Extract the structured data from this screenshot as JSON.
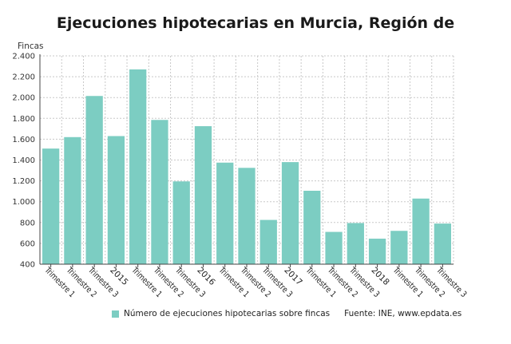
{
  "colors": {
    "bar": "#7ccdc2",
    "grid": "#c8c8c8",
    "axis": "#444444"
  },
  "legend": {
    "series_label": "Número de ejecuciones hipotecarias sobre fincas"
  },
  "source": "Fuente: INE, www.epdata.es",
  "chart_data": {
    "type": "bar",
    "title": "Ejecuciones hipotecarias en Murcia, Región de",
    "ylabel": "Fincas",
    "xlabel": "",
    "ylim": [
      400,
      2400
    ],
    "yticks": [
      400,
      600,
      800,
      1000,
      1200,
      1400,
      1600,
      1800,
      2000,
      2200,
      2400
    ],
    "ytick_labels": [
      "400",
      "600",
      "800",
      "1.000",
      "1.200",
      "1.400",
      "1.600",
      "1.800",
      "2.000",
      "2.200",
      "2.400"
    ],
    "grid": true,
    "legend_position": "bottom",
    "categories": [
      "Trimestre 1",
      "Trimestre 2",
      "Trimestre 3",
      "2015",
      "Trimestre 1",
      "Trimestre 2",
      "Trimestre 3",
      "2016",
      "Trimestre 1",
      "Trimestre 2",
      "Trimestre 3",
      "2017",
      "Trimestre 1",
      "Trimestre 2",
      "Trimestre 3",
      "2018",
      "Trimestre 1",
      "Trimestre 2",
      "Trimestre 3"
    ],
    "category_labels": [
      "Trimestre 1",
      "Trimestre 2",
      "Trimestre 3",
      "2015",
      "Trimestre 1",
      "Trimestre 2",
      "Trimestre 3",
      "2016",
      "Trimestre 1",
      "Trimestre 2",
      "Trimestre 3",
      "2017",
      "Trimestre 1",
      "Trimestre 2",
      "Trimestre 3",
      "2018",
      "Trimestre 1",
      "Trimestre 2",
      "Trimestre 3"
    ],
    "series": [
      {
        "name": "Número de ejecuciones hipotecarias sobre fincas",
        "values": [
          1510,
          1620,
          2015,
          1630,
          2270,
          1785,
          1195,
          1725,
          1375,
          1325,
          825,
          1380,
          1105,
          710,
          795,
          645,
          720,
          1030,
          790
        ]
      }
    ]
  }
}
